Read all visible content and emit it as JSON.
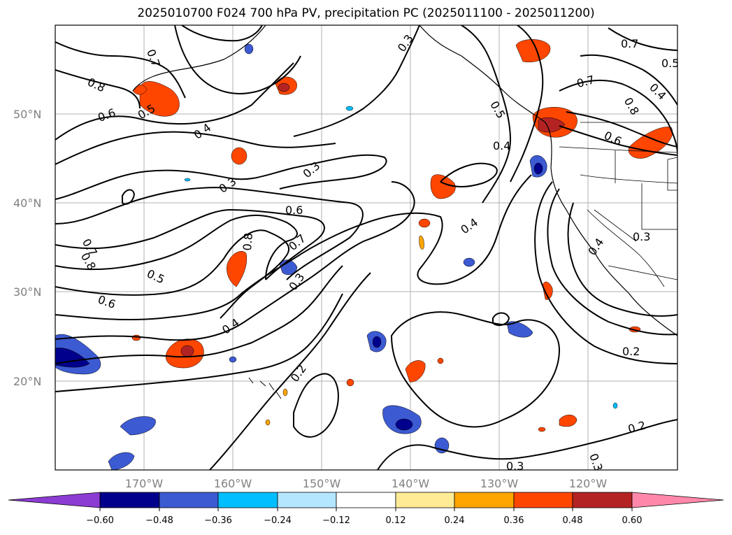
{
  "title": "2025010700 F024 700 hPa PV, precipitation PC (2025011100 - 2025011200)",
  "map": {
    "lon_labels": [
      "170°W",
      "160°W",
      "150°W",
      "140°W",
      "130°W",
      "120°W"
    ],
    "lat_labels": [
      "50°N",
      "40°N",
      "30°N",
      "20°N"
    ],
    "pv_contour_labels": [
      "0.7",
      "0.8",
      "0.6",
      "0.5",
      "0.4",
      "0.3",
      "0.3",
      "0.6",
      "0.8",
      "0.7",
      "0.5",
      "0.6",
      "0.8",
      "0.7",
      "0.3",
      "0.4",
      "0.2",
      "0.3",
      "0.4",
      "0.5",
      "0.4",
      "0.7",
      "0.8",
      "0.6",
      "0.7",
      "0.5",
      "0.4",
      "0.4",
      "0.3",
      "0.2",
      "0.2",
      "0.3",
      "0.3"
    ]
  },
  "colorbar": {
    "ticks": [
      "−0.60",
      "−0.48",
      "−0.36",
      "−0.24",
      "−0.12",
      "0.12",
      "0.24",
      "0.36",
      "0.48",
      "0.60"
    ],
    "colors": [
      "#8c3cd2",
      "#00008c",
      "#3c5ad2",
      "#00beff",
      "#b4e6ff",
      "#ffffff",
      "#ffeb96",
      "#ffa500",
      "#ff4600",
      "#b42323",
      "#ff88aa"
    ]
  }
}
